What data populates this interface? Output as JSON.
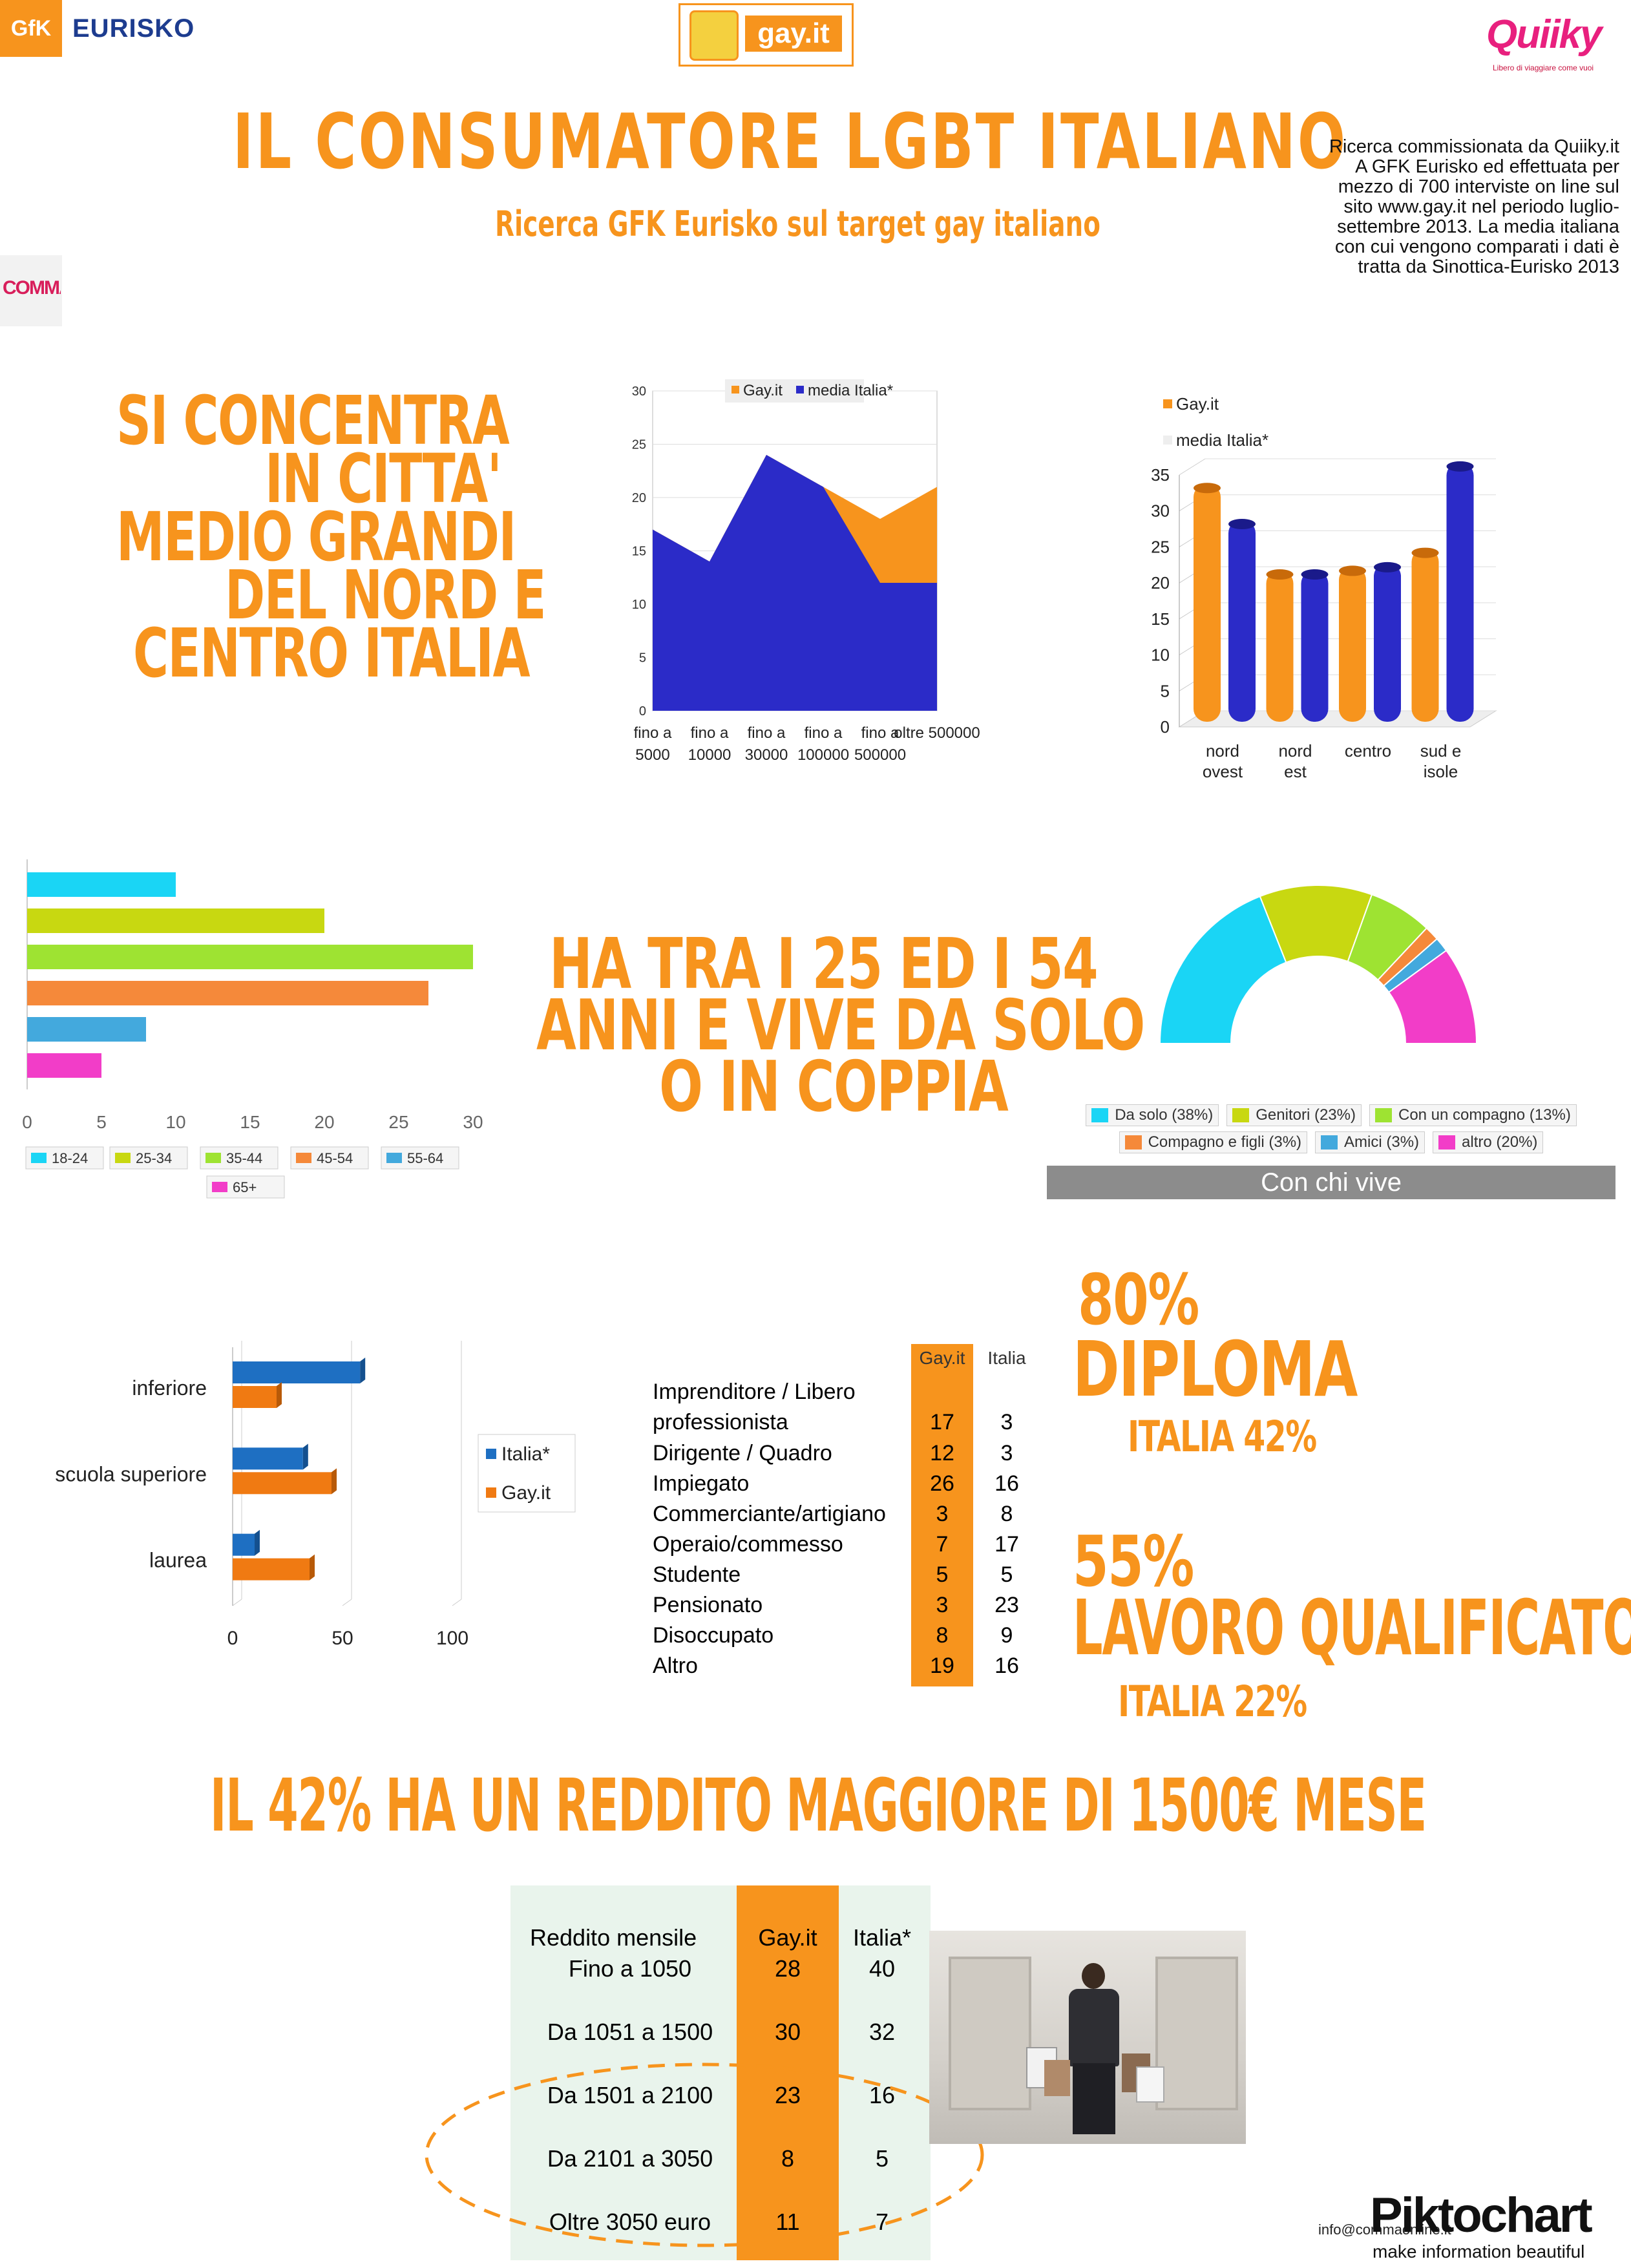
{
  "logos": {
    "gfk": "GfK",
    "eurisko": "EURISKO",
    "gayit": "gay.it",
    "quiiky": "Quiiky",
    "quiiky_tag": "Libero di viaggiare come vuoi",
    "comma": "COMMA",
    "piktochart": "Piktochart",
    "piktochart_tag": "make information beautiful"
  },
  "header": {
    "title": "IL CONSUMATORE LGBT ITALIANO",
    "subtitle": "Ricerca GFK Eurisko sul target gay italiano",
    "note": "Ricerca commissionata da Quiiky.it A GFK Eurisko ed effettuata per mezzo di 700 interviste on line sul sito www.gay.it nel periodo luglio-settembre 2013. La media italiana con cui vengono comparati i dati è tratta da Sinottica-Eurisko 2013"
  },
  "section1": {
    "lines": [
      "SI CONCENTRA",
      "IN CITTA'",
      "MEDIO GRANDI",
      "DEL NORD E",
      "CENTRO ITALIA"
    ]
  },
  "section2": {
    "lines": [
      "HA TRA I 25 ED I 54",
      "ANNI E VIVE DA SOLO",
      "O IN COPPIA"
    ]
  },
  "stats": {
    "diploma_pct": "80%",
    "diploma_label": "DIPLOMA",
    "diploma_italia": "ITALIA 42%",
    "lavoro_pct": "55%",
    "lavoro_label": "LAVORO QUALIFICATO",
    "lavoro_italia": "ITALIA 22%"
  },
  "headline_reddito": "IL 42% HA UN REDDITO MAGGIORE DI 1500€ MESE",
  "footer": {
    "email": "info@commaonline.it"
  },
  "colors": {
    "orange": "#f7941d",
    "blue": "#2b2bc8"
  },
  "chart_data": [
    {
      "id": "citta",
      "type": "area",
      "categories": [
        "fino a 5000",
        "fino a 10000",
        "fino a 30000",
        "fino a 100000",
        "fino a 500000",
        "oltre 500000"
      ],
      "series": [
        {
          "name": "Gay.it",
          "values": [
            17,
            14,
            24,
            21,
            18,
            21
          ]
        },
        {
          "name": "media Italia*",
          "values": [
            17,
            14,
            24,
            21,
            12,
            12
          ]
        }
      ],
      "ylim": [
        0,
        30
      ],
      "yticks": [
        0,
        5,
        10,
        15,
        20,
        25,
        30
      ],
      "legend": "top"
    },
    {
      "id": "area_geo",
      "type": "bar",
      "categories": [
        "nord ovest",
        "nord est",
        "centro",
        "sud e isole"
      ],
      "series": [
        {
          "name": "Gay.it",
          "values": [
            33,
            21,
            21.5,
            24
          ]
        },
        {
          "name": "media Italia*",
          "values": [
            28,
            21,
            22,
            36
          ]
        }
      ],
      "ylim": [
        0,
        35
      ],
      "yticks": [
        0,
        5,
        10,
        15,
        20,
        25,
        30,
        35
      ],
      "legend": "top-left"
    },
    {
      "id": "eta",
      "type": "bar",
      "orientation": "horizontal",
      "categories": [
        "18-24",
        "25-34",
        "35-44",
        "45-54",
        "55-64",
        "65+"
      ],
      "values": [
        10,
        20,
        30,
        27,
        8,
        5
      ],
      "colors": [
        "#1ad5f5",
        "#c8d811",
        "#9ee332",
        "#f5893a",
        "#43a9dd",
        "#f23dc8"
      ],
      "xlim": [
        0,
        30
      ],
      "xticks": [
        0,
        5,
        10,
        15,
        20,
        25,
        30
      ],
      "legend": "bottom"
    },
    {
      "id": "con_chi_vive",
      "type": "pie",
      "title": "Con chi vive",
      "labels": [
        "Da solo (38%)",
        "Genitori (23%)",
        "Con un compagno (13%)",
        "Compagno e figli (3%)",
        "Amici (3%)",
        "altro (20%)"
      ],
      "values": [
        38,
        23,
        13,
        3,
        3,
        20
      ],
      "colors": [
        "#1ad5f5",
        "#c8d811",
        "#9ee332",
        "#f5893a",
        "#43a9dd",
        "#f23dc8"
      ],
      "legend": "bottom"
    },
    {
      "id": "istruzione",
      "type": "bar",
      "orientation": "horizontal",
      "categories": [
        "inferiore",
        "scuola superiore",
        "laurea"
      ],
      "series": [
        {
          "name": "Italia*",
          "values": [
            58,
            32,
            10
          ]
        },
        {
          "name": "Gay.it",
          "values": [
            20,
            45,
            35
          ]
        }
      ],
      "xlim": [
        0,
        100
      ],
      "xticks": [
        0,
        50,
        100
      ],
      "legend": "right"
    },
    {
      "id": "professione",
      "type": "table",
      "columns": [
        "",
        "Gay.it",
        "Italia"
      ],
      "rows": [
        {
          "label": "Imprenditore / Libero professionista",
          "gay": "17",
          "italia": "3"
        },
        {
          "label": "Dirigente  / Quadro",
          "gay": "12",
          "italia": "3"
        },
        {
          "label": "Impiegato",
          "gay": "26",
          "italia": "16"
        },
        {
          "label": "Commerciante/artigiano",
          "gay": "3",
          "italia": "8"
        },
        {
          "label": "Operaio/commesso",
          "gay": "7",
          "italia": "17"
        },
        {
          "label": "Studente",
          "gay": "5",
          "italia": "5"
        },
        {
          "label": "Pensionato",
          "gay": "3",
          "italia": "23"
        },
        {
          "label": "Disoccupato",
          "gay": "8",
          "italia": "9"
        },
        {
          "label": "Altro",
          "gay": "19",
          "italia": "16"
        }
      ]
    },
    {
      "id": "reddito",
      "type": "table",
      "columns": [
        "Reddito mensile",
        "Gay.it",
        "Italia*"
      ],
      "rows": [
        {
          "label": "Fino a 1050",
          "gay": "28",
          "italia": "40"
        },
        {
          "label": "Da 1051 a 1500",
          "gay": "30",
          "italia": "32"
        },
        {
          "label": "Da 1501 a 2100",
          "gay": "23",
          "italia": "16"
        },
        {
          "label": "Da 2101 a 3050",
          "gay": "8",
          "italia": "5"
        },
        {
          "label": "Oltre 3050 euro",
          "gay": "11",
          "italia": "7"
        }
      ]
    }
  ]
}
